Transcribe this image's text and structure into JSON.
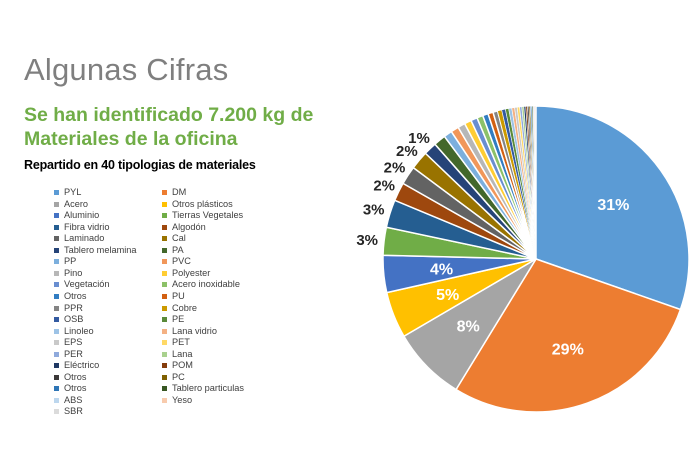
{
  "title": "Algunas Cifras",
  "headline": "Se han identificado 7.200 kg de Materiales de la oficina",
  "subhead": "Repartido en 40 tipologias de materiales",
  "chart_data": {
    "type": "pie",
    "legend_position": "left",
    "slices": [
      {
        "label": "PYL",
        "value": 31,
        "color": "#5b9bd5",
        "data_label": "31%"
      },
      {
        "label": "DM",
        "value": 29,
        "color": "#ed7d31",
        "data_label": "29%"
      },
      {
        "label": "Acero",
        "value": 8,
        "color": "#a5a5a5",
        "data_label": "8%"
      },
      {
        "label": "Otros plásticos",
        "value": 5,
        "color": "#ffc000",
        "data_label": "5%"
      },
      {
        "label": "Aluminio",
        "value": 4,
        "color": "#4472c4",
        "data_label": "4%"
      },
      {
        "label": "Tierras Vegetales",
        "value": 3,
        "color": "#70ad47",
        "data_label": "3%"
      },
      {
        "label": "Fibra vidrio",
        "value": 3,
        "color": "#255e91",
        "data_label": "3%"
      },
      {
        "label": "Algodón",
        "value": 2,
        "color": "#9e480e",
        "data_label": "2%"
      },
      {
        "label": "Laminado",
        "value": 2,
        "color": "#636363",
        "data_label": "2%"
      },
      {
        "label": "Cal",
        "value": 2,
        "color": "#997300",
        "data_label": "2%"
      },
      {
        "label": "Tablero melamina",
        "value": 1.4,
        "color": "#264478",
        "data_label": "1%"
      },
      {
        "label": "PA",
        "value": 1.3,
        "color": "#43682b",
        "data_label": ""
      },
      {
        "label": "PP",
        "value": 0.9,
        "color": "#7cafdd",
        "data_label": ""
      },
      {
        "label": "PVC",
        "value": 0.85,
        "color": "#f1975a",
        "data_label": ""
      },
      {
        "label": "Pino",
        "value": 0.8,
        "color": "#b7b7b7",
        "data_label": ""
      },
      {
        "label": "Polyester",
        "value": 0.75,
        "color": "#ffcd33",
        "data_label": ""
      },
      {
        "label": "Vegetación",
        "value": 0.7,
        "color": "#698ed0",
        "data_label": ""
      },
      {
        "label": "Acero inoxidable",
        "value": 0.65,
        "color": "#8cc168",
        "data_label": ""
      },
      {
        "label": "Otros",
        "value": 0.6,
        "color": "#327dc2",
        "data_label": ""
      },
      {
        "label": "PU",
        "value": 0.55,
        "color": "#d26012",
        "data_label": ""
      },
      {
        "label": "PPR",
        "value": 0.5,
        "color": "#848484",
        "data_label": ""
      },
      {
        "label": "Cobre",
        "value": 0.45,
        "color": "#cc9a00",
        "data_label": ""
      },
      {
        "label": "OSB",
        "value": 0.4,
        "color": "#335aa1",
        "data_label": ""
      },
      {
        "label": "PE",
        "value": 0.36,
        "color": "#5a8a39",
        "data_label": ""
      },
      {
        "label": "Linoleo",
        "value": 0.33,
        "color": "#9dc3e6",
        "data_label": ""
      },
      {
        "label": "Lana vidrio",
        "value": 0.3,
        "color": "#f4b183",
        "data_label": ""
      },
      {
        "label": "EPS",
        "value": 0.28,
        "color": "#c9c9c9",
        "data_label": ""
      },
      {
        "label": "PET",
        "value": 0.26,
        "color": "#ffd966",
        "data_label": ""
      },
      {
        "label": "PER",
        "value": 0.24,
        "color": "#8faadc",
        "data_label": ""
      },
      {
        "label": "Lana",
        "value": 0.22,
        "color": "#a9d18e",
        "data_label": ""
      },
      {
        "label": "Eléctrico",
        "value": 0.2,
        "color": "#1f3864",
        "data_label": ""
      },
      {
        "label": "POM",
        "value": 0.18,
        "color": "#843c0c",
        "data_label": ""
      },
      {
        "label": "Otros",
        "value": 0.16,
        "color": "#3b3838",
        "data_label": ""
      },
      {
        "label": "PC",
        "value": 0.15,
        "color": "#7f6000",
        "data_label": ""
      },
      {
        "label": "Otros",
        "value": 0.14,
        "color": "#2e75b6",
        "data_label": ""
      },
      {
        "label": "Tablero particulas",
        "value": 0.13,
        "color": "#385723",
        "data_label": ""
      },
      {
        "label": "ABS",
        "value": 0.12,
        "color": "#bdd7ee",
        "data_label": ""
      },
      {
        "label": "Yeso",
        "value": 0.11,
        "color": "#f8cbad",
        "data_label": ""
      },
      {
        "label": "SBR",
        "value": 0.1,
        "color": "#dbdbdb",
        "data_label": ""
      }
    ]
  }
}
